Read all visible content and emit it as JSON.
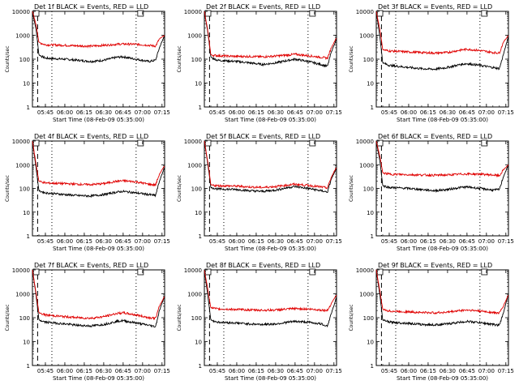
{
  "figure": {
    "xlabel": "Start Time (08-Feb-09 05:35:00)",
    "ylabel": "Counts/sec",
    "x_ticks": [
      "05:45",
      "06:00",
      "06:15",
      "06:30",
      "06:45",
      "07:00",
      "07:15"
    ],
    "y_ticks": [
      "1",
      "10",
      "100",
      "1000",
      "10000"
    ],
    "colors": {
      "events": "#000000",
      "lld": "#e00000",
      "axis": "#000000"
    }
  },
  "chart_data": [
    {
      "type": "line",
      "title": "Det 1f BLACK = Events, RED = LLD",
      "xlabel": "Start Time (08-Feb-09 05:35:00)",
      "ylabel": "Counts/sec",
      "y_scale": "log",
      "ylim": [
        1,
        10000
      ],
      "xlim": [
        "05:35",
        "07:17"
      ],
      "dashed_marker": "05:39",
      "dotted_markers": [
        "05:50",
        "06:55"
      ],
      "series": [
        {
          "color": "#000000",
          "x": [
            "05:35",
            "05:38",
            "05:40",
            "05:45",
            "06:00",
            "06:10",
            "06:20",
            "06:30",
            "06:40",
            "06:45",
            "06:55",
            "07:05",
            "07:10",
            "07:13",
            "07:17"
          ],
          "values": [
            10000,
            1500,
            150,
            110,
            100,
            90,
            80,
            90,
            120,
            125,
            100,
            80,
            90,
            300,
            1000
          ]
        },
        {
          "color": "#e00000",
          "x": [
            "05:35",
            "05:38",
            "05:40",
            "05:45",
            "06:00",
            "06:10",
            "06:20",
            "06:30",
            "06:40",
            "06:45",
            "06:55",
            "07:05",
            "07:10",
            "07:13",
            "07:17"
          ],
          "values": [
            10000,
            2500,
            500,
            400,
            380,
            360,
            350,
            380,
            420,
            430,
            420,
            380,
            350,
            700,
            1000
          ]
        }
      ]
    },
    {
      "type": "line",
      "title": "Det 2f BLACK = Events, RED = LLD",
      "xlabel": "Start Time (08-Feb-09 05:35:00)",
      "ylabel": "Counts/sec",
      "y_scale": "log",
      "ylim": [
        1,
        10000
      ],
      "xlim": [
        "05:35",
        "07:17"
      ],
      "dashed_marker": "05:39",
      "dotted_markers": [
        "05:50",
        "06:55"
      ],
      "series": [
        {
          "color": "#000000",
          "x": [
            "05:35",
            "05:38",
            "05:40",
            "05:45",
            "06:00",
            "06:10",
            "06:20",
            "06:30",
            "06:40",
            "06:45",
            "06:55",
            "07:05",
            "07:10",
            "07:13",
            "07:17"
          ],
          "values": [
            10000,
            1000,
            120,
            90,
            80,
            70,
            60,
            70,
            90,
            100,
            80,
            60,
            50,
            200,
            700
          ]
        },
        {
          "color": "#e00000",
          "x": [
            "05:35",
            "05:38",
            "05:40",
            "05:45",
            "06:00",
            "06:10",
            "06:20",
            "06:30",
            "06:40",
            "06:45",
            "06:55",
            "07:05",
            "07:10",
            "07:13",
            "07:17"
          ],
          "values": [
            10000,
            1200,
            150,
            140,
            130,
            130,
            125,
            135,
            150,
            160,
            140,
            120,
            110,
            300,
            800
          ]
        }
      ]
    },
    {
      "type": "line",
      "title": "Det 3f BLACK = Events, RED = LLD",
      "xlabel": "Start Time (08-Feb-09 05:35:00)",
      "ylabel": "Counts/sec",
      "y_scale": "log",
      "ylim": [
        1,
        10000
      ],
      "xlim": [
        "05:35",
        "07:17"
      ],
      "dashed_marker": "05:39",
      "dotted_markers": [
        "05:50",
        "06:55"
      ],
      "series": [
        {
          "color": "#000000",
          "x": [
            "05:35",
            "05:38",
            "05:40",
            "05:45",
            "06:00",
            "06:10",
            "06:20",
            "06:30",
            "06:40",
            "06:45",
            "06:55",
            "07:05",
            "07:10",
            "07:13",
            "07:17"
          ],
          "values": [
            10000,
            700,
            70,
            55,
            45,
            40,
            38,
            45,
            60,
            65,
            55,
            45,
            40,
            150,
            900
          ]
        },
        {
          "color": "#e00000",
          "x": [
            "05:35",
            "05:38",
            "05:40",
            "05:45",
            "06:00",
            "06:10",
            "06:20",
            "06:30",
            "06:40",
            "06:45",
            "06:55",
            "07:05",
            "07:10",
            "07:13",
            "07:17"
          ],
          "values": [
            10000,
            1500,
            250,
            220,
            200,
            190,
            180,
            190,
            240,
            260,
            230,
            190,
            180,
            500,
            1000
          ]
        }
      ]
    },
    {
      "type": "line",
      "title": "Det 4f BLACK = Events, RED = LLD",
      "xlabel": "Start Time (08-Feb-09 05:35:00)",
      "ylabel": "Counts/sec",
      "y_scale": "log",
      "ylim": [
        1,
        10000
      ],
      "xlim": [
        "05:35",
        "07:17"
      ],
      "dashed_marker": "05:39",
      "dotted_markers": [
        "05:50",
        "06:55"
      ],
      "series": [
        {
          "color": "#000000",
          "x": [
            "05:35",
            "05:38",
            "05:40",
            "05:45",
            "06:00",
            "06:10",
            "06:20",
            "06:30",
            "06:40",
            "06:45",
            "06:55",
            "07:05",
            "07:10",
            "07:13",
            "07:17"
          ],
          "values": [
            10000,
            600,
            80,
            65,
            55,
            50,
            48,
            55,
            70,
            75,
            65,
            55,
            50,
            200,
            800
          ]
        },
        {
          "color": "#e00000",
          "x": [
            "05:35",
            "05:38",
            "05:40",
            "05:45",
            "06:00",
            "06:10",
            "06:20",
            "06:30",
            "06:40",
            "06:45",
            "06:55",
            "07:05",
            "07:10",
            "07:13",
            "07:17"
          ],
          "values": [
            10000,
            900,
            200,
            170,
            160,
            150,
            145,
            160,
            200,
            210,
            190,
            150,
            140,
            400,
            900
          ]
        }
      ]
    },
    {
      "type": "line",
      "title": "Det 5f BLACK = Events, RED = LLD",
      "xlabel": "Start Time (08-Feb-09 05:35:00)",
      "ylabel": "Counts/sec",
      "y_scale": "log",
      "ylim": [
        1,
        10000
      ],
      "xlim": [
        "05:35",
        "07:17"
      ],
      "dashed_marker": "05:39",
      "dotted_markers": [
        "05:50",
        "06:55"
      ],
      "series": [
        {
          "color": "#000000",
          "x": [
            "05:35",
            "05:38",
            "05:40",
            "05:45",
            "06:00",
            "06:10",
            "06:20",
            "06:30",
            "06:40",
            "06:45",
            "06:55",
            "07:05",
            "07:10",
            "07:13",
            "07:17"
          ],
          "values": [
            10000,
            800,
            110,
            95,
            90,
            80,
            75,
            85,
            110,
            120,
            100,
            80,
            70,
            250,
            700
          ]
        },
        {
          "color": "#e00000",
          "x": [
            "05:35",
            "05:38",
            "05:40",
            "05:45",
            "06:00",
            "06:10",
            "06:20",
            "06:30",
            "06:40",
            "06:45",
            "06:55",
            "07:05",
            "07:10",
            "07:13",
            "07:17"
          ],
          "values": [
            10000,
            1000,
            140,
            130,
            125,
            115,
            110,
            120,
            140,
            150,
            135,
            115,
            105,
            300,
            800
          ]
        }
      ]
    },
    {
      "type": "line",
      "title": "Det 6f BLACK = Events, RED = LLD",
      "xlabel": "Start Time (08-Feb-09 05:35:00)",
      "ylabel": "Counts/sec",
      "y_scale": "log",
      "ylim": [
        1,
        10000
      ],
      "xlim": [
        "05:35",
        "07:17"
      ],
      "dashed_marker": "05:39",
      "dotted_markers": [
        "05:50",
        "06:55"
      ],
      "series": [
        {
          "color": "#000000",
          "x": [
            "05:35",
            "05:38",
            "05:40",
            "05:45",
            "06:00",
            "06:10",
            "06:20",
            "06:30",
            "06:40",
            "06:45",
            "06:55",
            "07:05",
            "07:10",
            "07:13",
            "07:17"
          ],
          "values": [
            10000,
            1200,
            130,
            110,
            100,
            90,
            80,
            90,
            110,
            115,
            100,
            85,
            90,
            300,
            1000
          ]
        },
        {
          "color": "#e00000",
          "x": [
            "05:35",
            "05:38",
            "05:40",
            "05:45",
            "06:00",
            "06:10",
            "06:20",
            "06:30",
            "06:40",
            "06:45",
            "06:55",
            "07:05",
            "07:10",
            "07:13",
            "07:17"
          ],
          "values": [
            10000,
            2000,
            450,
            400,
            380,
            370,
            360,
            370,
            400,
            410,
            400,
            370,
            340,
            600,
            1000
          ]
        }
      ]
    },
    {
      "type": "line",
      "title": "Det 7f BLACK = Events, RED = LLD",
      "xlabel": "Start Time (08-Feb-09 05:35:00)",
      "ylabel": "Counts/sec",
      "y_scale": "log",
      "ylim": [
        1,
        10000
      ],
      "xlim": [
        "05:35",
        "07:17"
      ],
      "dashed_marker": "05:39",
      "dotted_markers": [
        "05:50",
        "06:55"
      ],
      "series": [
        {
          "color": "#000000",
          "x": [
            "05:35",
            "05:38",
            "05:40",
            "05:45",
            "06:00",
            "06:10",
            "06:20",
            "06:30",
            "06:40",
            "06:45",
            "06:55",
            "07:05",
            "07:10",
            "07:13",
            "07:17"
          ],
          "values": [
            10000,
            700,
            80,
            65,
            55,
            48,
            45,
            52,
            70,
            75,
            60,
            48,
            42,
            200,
            800
          ]
        },
        {
          "color": "#e00000",
          "x": [
            "05:35",
            "05:38",
            "05:40",
            "05:45",
            "06:00",
            "06:10",
            "06:20",
            "06:30",
            "06:40",
            "06:45",
            "06:55",
            "07:05",
            "07:10",
            "07:13",
            "07:17"
          ],
          "values": [
            10000,
            900,
            160,
            130,
            110,
            100,
            95,
            110,
            150,
            160,
            130,
            100,
            95,
            300,
            800
          ]
        }
      ]
    },
    {
      "type": "line",
      "title": "Det 8f BLACK = Events, RED = LLD",
      "xlabel": "Start Time (08-Feb-09 05:35:00)",
      "ylabel": "Counts/sec",
      "y_scale": "log",
      "ylim": [
        1,
        10000
      ],
      "xlim": [
        "05:35",
        "07:17"
      ],
      "dashed_marker": "05:39",
      "dotted_markers": [
        "05:50",
        "06:55"
      ],
      "series": [
        {
          "color": "#000000",
          "x": [
            "05:35",
            "05:38",
            "05:40",
            "05:45",
            "06:00",
            "06:10",
            "06:20",
            "06:30",
            "06:40",
            "06:45",
            "06:55",
            "07:05",
            "07:10",
            "07:13",
            "07:17"
          ],
          "values": [
            10000,
            600,
            80,
            65,
            60,
            55,
            52,
            55,
            65,
            70,
            65,
            55,
            45,
            150,
            700
          ]
        },
        {
          "color": "#e00000",
          "x": [
            "05:35",
            "05:38",
            "05:40",
            "05:45",
            "06:00",
            "06:10",
            "06:20",
            "06:30",
            "06:40",
            "06:45",
            "06:55",
            "07:05",
            "07:10",
            "07:13",
            "07:17"
          ],
          "values": [
            10000,
            1200,
            260,
            230,
            220,
            210,
            205,
            210,
            230,
            240,
            230,
            210,
            200,
            400,
            900
          ]
        }
      ]
    },
    {
      "type": "line",
      "title": "Det 9f BLACK = Events, RED = LLD",
      "xlabel": "Start Time (08-Feb-09 05:35:00)",
      "ylabel": "Counts/sec",
      "y_scale": "log",
      "ylim": [
        1,
        10000
      ],
      "xlim": [
        "05:35",
        "07:17"
      ],
      "dashed_marker": "05:39",
      "dotted_markers": [
        "05:50",
        "06:55"
      ],
      "series": [
        {
          "color": "#000000",
          "x": [
            "05:35",
            "05:38",
            "05:40",
            "05:45",
            "06:00",
            "06:10",
            "06:20",
            "06:30",
            "06:40",
            "06:45",
            "06:55",
            "07:05",
            "07:10",
            "07:13",
            "07:17"
          ],
          "values": [
            10000,
            700,
            80,
            65,
            58,
            52,
            50,
            55,
            65,
            70,
            62,
            52,
            48,
            150,
            1000
          ]
        },
        {
          "color": "#e00000",
          "x": [
            "05:35",
            "05:38",
            "05:40",
            "05:45",
            "06:00",
            "06:10",
            "06:20",
            "06:30",
            "06:40",
            "06:45",
            "06:55",
            "07:05",
            "07:10",
            "07:13",
            "07:17"
          ],
          "values": [
            10000,
            1100,
            220,
            190,
            175,
            165,
            160,
            170,
            200,
            210,
            190,
            165,
            155,
            300,
            900
          ]
        }
      ]
    }
  ]
}
